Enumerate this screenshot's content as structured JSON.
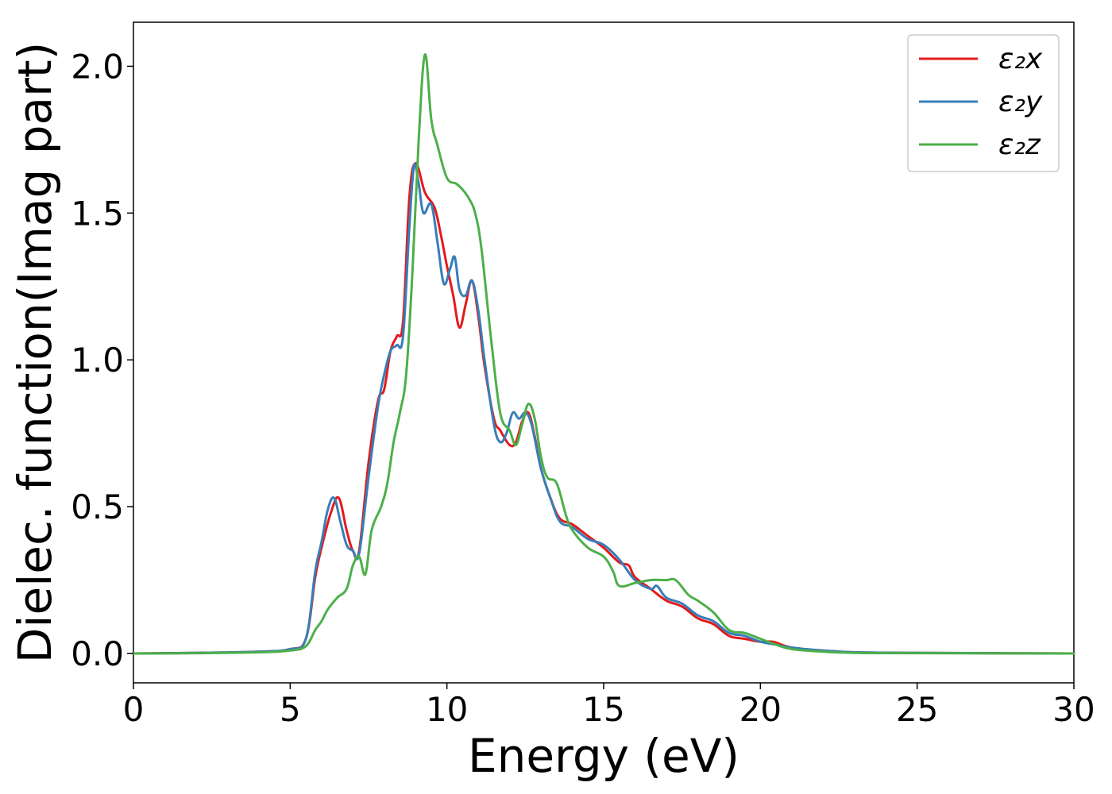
{
  "chart_data": {
    "type": "line",
    "xlabel": "Energy (eV)",
    "ylabel": "Dielec. function(Imag part)",
    "xlim": [
      0,
      30
    ],
    "ylim": [
      -0.1,
      2.15
    ],
    "xticks": [
      0,
      5,
      10,
      15,
      20,
      25,
      30
    ],
    "yticks": [
      0.0,
      0.5,
      1.0,
      1.5,
      2.0
    ],
    "xtick_labels": [
      "0",
      "5",
      "10",
      "15",
      "20",
      "25",
      "30"
    ],
    "ytick_labels": [
      "0.0",
      "0.5",
      "1.0",
      "1.5",
      "2.0"
    ],
    "grid": false,
    "legend_position": "top-right",
    "series": [
      {
        "name": "ε₂x",
        "color": "#e41a1c",
        "x": [
          0,
          2,
          4,
          5,
          5.5,
          5.8,
          6.0,
          6.3,
          6.55,
          6.8,
          7.0,
          7.2,
          7.5,
          7.8,
          8.0,
          8.2,
          8.4,
          8.6,
          8.8,
          9.0,
          9.3,
          9.6,
          9.8,
          10.0,
          10.2,
          10.4,
          10.6,
          10.8,
          11.0,
          11.2,
          11.5,
          11.7,
          12.0,
          12.2,
          12.4,
          12.6,
          12.8,
          13.0,
          13.3,
          13.6,
          14.0,
          14.5,
          15.0,
          15.5,
          15.8,
          16.0,
          16.5,
          17.0,
          17.5,
          18.0,
          18.5,
          19.0,
          19.5,
          20.0,
          20.4,
          21.0,
          22.0,
          23.0,
          25.0,
          30.0
        ],
        "y": [
          0.0,
          0.002,
          0.006,
          0.015,
          0.05,
          0.26,
          0.36,
          0.48,
          0.53,
          0.42,
          0.35,
          0.35,
          0.65,
          0.86,
          0.9,
          1.03,
          1.08,
          1.13,
          1.55,
          1.67,
          1.57,
          1.52,
          1.43,
          1.32,
          1.22,
          1.11,
          1.19,
          1.27,
          1.15,
          0.98,
          0.8,
          0.76,
          0.71,
          0.72,
          0.79,
          0.82,
          0.74,
          0.63,
          0.53,
          0.46,
          0.44,
          0.4,
          0.36,
          0.31,
          0.3,
          0.26,
          0.22,
          0.18,
          0.16,
          0.12,
          0.1,
          0.06,
          0.05,
          0.04,
          0.04,
          0.02,
          0.01,
          0.004,
          0.002,
          0.0
        ]
      },
      {
        "name": "ε₂y",
        "color": "#377eb8",
        "x": [
          0,
          2,
          4,
          5,
          5.5,
          5.8,
          6.0,
          6.2,
          6.4,
          6.6,
          6.8,
          7.0,
          7.2,
          7.5,
          7.8,
          8.0,
          8.2,
          8.4,
          8.6,
          8.8,
          8.95,
          9.1,
          9.25,
          9.5,
          9.7,
          9.9,
          10.1,
          10.25,
          10.4,
          10.6,
          10.8,
          11.0,
          11.2,
          11.5,
          11.7,
          11.9,
          12.1,
          12.3,
          12.5,
          12.7,
          13.0,
          13.3,
          13.6,
          14.0,
          14.5,
          15.0,
          15.5,
          16.0,
          16.5,
          16.7,
          17.0,
          17.5,
          18.0,
          18.5,
          19.0,
          19.5,
          20.0,
          20.5,
          21.0,
          22.0,
          23.0,
          25.0,
          30.0
        ],
        "y": [
          0.0,
          0.002,
          0.006,
          0.015,
          0.05,
          0.28,
          0.38,
          0.49,
          0.53,
          0.45,
          0.37,
          0.35,
          0.34,
          0.6,
          0.84,
          0.95,
          1.03,
          1.05,
          1.08,
          1.45,
          1.66,
          1.6,
          1.5,
          1.53,
          1.4,
          1.26,
          1.31,
          1.35,
          1.24,
          1.22,
          1.27,
          1.17,
          1.0,
          0.78,
          0.72,
          0.75,
          0.82,
          0.8,
          0.82,
          0.78,
          0.63,
          0.53,
          0.45,
          0.43,
          0.39,
          0.37,
          0.32,
          0.25,
          0.22,
          0.23,
          0.19,
          0.17,
          0.13,
          0.11,
          0.07,
          0.06,
          0.04,
          0.03,
          0.02,
          0.01,
          0.004,
          0.002,
          0.0
        ]
      },
      {
        "name": "ε₂z",
        "color": "#4daf4a",
        "x": [
          0,
          2,
          4,
          5,
          5.5,
          5.8,
          6.0,
          6.2,
          6.5,
          6.8,
          7.0,
          7.2,
          7.4,
          7.6,
          7.9,
          8.1,
          8.3,
          8.5,
          8.7,
          8.9,
          9.1,
          9.3,
          9.5,
          9.7,
          10.0,
          10.3,
          10.5,
          10.7,
          10.9,
          11.1,
          11.4,
          11.7,
          12.0,
          12.2,
          12.4,
          12.6,
          12.8,
          13.0,
          13.2,
          13.5,
          13.8,
          14.0,
          14.5,
          15.0,
          15.3,
          15.5,
          16.0,
          16.5,
          17.0,
          17.3,
          17.7,
          18.0,
          18.5,
          19.0,
          19.5,
          20.0,
          20.5,
          21.0,
          22.0,
          23.0,
          25.0,
          30.0
        ],
        "y": [
          0.0,
          0.001,
          0.004,
          0.01,
          0.025,
          0.08,
          0.11,
          0.15,
          0.19,
          0.22,
          0.3,
          0.33,
          0.27,
          0.42,
          0.5,
          0.58,
          0.72,
          0.82,
          0.95,
          1.3,
          1.75,
          2.04,
          1.82,
          1.73,
          1.62,
          1.6,
          1.58,
          1.55,
          1.5,
          1.38,
          1.08,
          0.82,
          0.76,
          0.71,
          0.78,
          0.85,
          0.8,
          0.67,
          0.6,
          0.58,
          0.47,
          0.42,
          0.36,
          0.33,
          0.28,
          0.23,
          0.24,
          0.25,
          0.25,
          0.25,
          0.2,
          0.18,
          0.14,
          0.08,
          0.07,
          0.05,
          0.03,
          0.015,
          0.006,
          0.002,
          0.001,
          0.0
        ]
      }
    ]
  }
}
